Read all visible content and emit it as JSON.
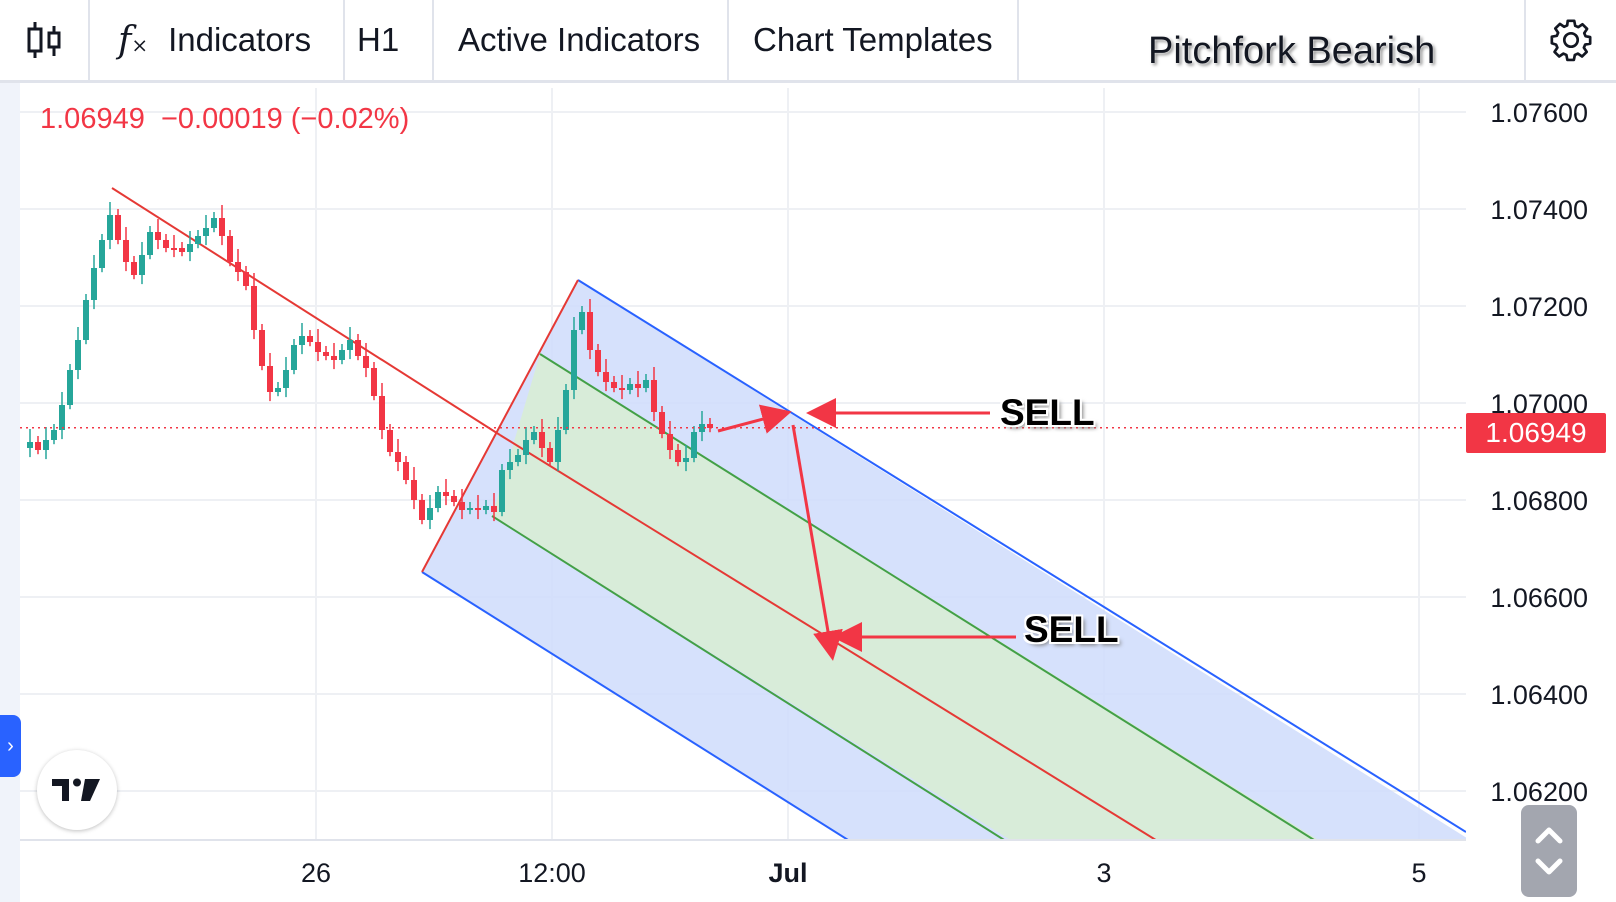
{
  "toolbar": {
    "indicators_label": "Indicators",
    "interval_label": "H1",
    "active_indicators_label": "Active Indicators",
    "chart_templates_label": "Chart Templates",
    "chart_title": "Pitchfork Bearish"
  },
  "legend": {
    "text": "1.06949  −0.00019 (−0.02%)"
  },
  "price_axis": {
    "ticks": [
      "1.07600",
      "1.07400",
      "1.07200",
      "1.07000",
      "1.06800",
      "1.06600",
      "1.06400",
      "1.06200"
    ],
    "current_price_label": "1.06949"
  },
  "time_axis": {
    "ticks": [
      "26",
      "12:00",
      "Jul",
      "3",
      "5"
    ]
  },
  "annotations": {
    "sell_1": "SELL",
    "sell_2": "SELL"
  },
  "colors": {
    "up": "#26a69a",
    "down": "#f23645",
    "pitchfork_outer": "#2962ff",
    "pitchfork_outer_fill": "#cfdcfb",
    "pitchfork_inner": "#43a047",
    "pitchfork_inner_fill": "#d8ecd9",
    "median_line": "#e53935",
    "arrow": "#f23645"
  },
  "icons": {
    "chart_type": "candlestick-icon",
    "indicators": "function-icon",
    "settings": "gear-icon",
    "logo": "tradingview-logo-icon",
    "expand": "chevron-right-icon",
    "scroll": "chevron-up-down-icon"
  },
  "chart_data": {
    "type": "candlestick",
    "symbol_price": 1.06949,
    "change": -0.00019,
    "change_pct": -0.02,
    "ylim": [
      1.0611,
      1.0765
    ],
    "x_ticks": [
      "26",
      "12:00",
      "Jul",
      "3",
      "5"
    ],
    "y_ticks": [
      1.076,
      1.074,
      1.072,
      1.07,
      1.068,
      1.066,
      1.064,
      1.062
    ],
    "drawings": [
      "bearish andrews pitchfork",
      "SELL arrow",
      "SELL arrow"
    ]
  }
}
